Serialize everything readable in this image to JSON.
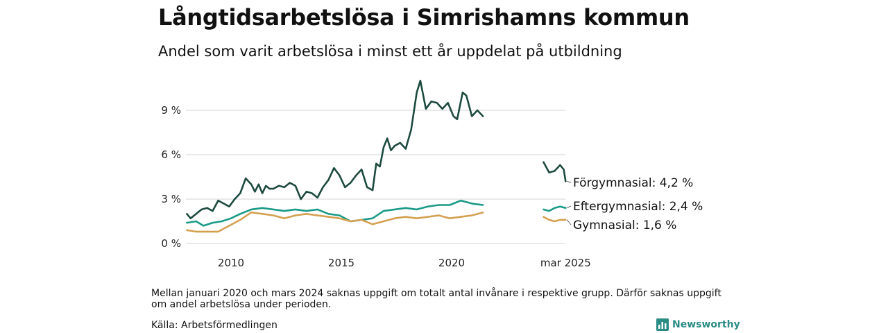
{
  "title": "Långtidsarbetslösa i Simrishamns kommun",
  "subtitle": "Andel som varit arbetslösa i minst ett år uppdelat på utbildning",
  "note": "Mellan januari 2020 och mars 2024 saknas uppgift om totalt antal invånare i respektive grupp. Därför saknas uppgift om andel arbetslösa under perioden.",
  "source": "Källa: Arbetsförmedlingen",
  "brand": "Newsworthy",
  "chart_data": {
    "type": "line",
    "title": "Långtidsarbetslösa i Simrishamns kommun",
    "subtitle": "Andel som varit arbetslösa i minst ett år uppdelat på utbildning",
    "x_tick_labels": [
      "2010",
      "2015",
      "2020",
      "mar 2025"
    ],
    "y_tick_labels": [
      "0 %",
      "3 %",
      "6 %",
      "9 %"
    ],
    "y_ticks": [
      0,
      3,
      6,
      9
    ],
    "ylim": [
      0,
      11
    ],
    "y_unit": "%",
    "grid": true,
    "legend": "end labels",
    "series": [
      {
        "name": "Förgymnasial",
        "end_label": "Förgymnasial: 4,2 %",
        "color": "#1d4a3f",
        "segments": [
          [
            [
              "2008-01",
              2.0
            ],
            [
              "2008-03",
              1.7
            ],
            [
              "2008-06",
              2.0
            ],
            [
              "2008-09",
              2.3
            ],
            [
              "2008-12",
              2.4
            ],
            [
              "2009-03",
              2.2
            ],
            [
              "2009-06",
              2.9
            ],
            [
              "2009-09",
              2.7
            ],
            [
              "2009-12",
              2.5
            ],
            [
              "2010-03",
              3.0
            ],
            [
              "2010-06",
              3.4
            ],
            [
              "2010-09",
              4.4
            ],
            [
              "2010-12",
              4.0
            ],
            [
              "2011-02",
              3.5
            ],
            [
              "2011-04",
              4.0
            ],
            [
              "2011-06",
              3.4
            ],
            [
              "2011-08",
              3.9
            ],
            [
              "2011-10",
              3.7
            ],
            [
              "2011-12",
              3.7
            ],
            [
              "2012-03",
              3.9
            ],
            [
              "2012-06",
              3.8
            ],
            [
              "2012-09",
              4.1
            ],
            [
              "2012-12",
              3.9
            ],
            [
              "2013-03",
              3.0
            ],
            [
              "2013-06",
              3.5
            ],
            [
              "2013-09",
              3.4
            ],
            [
              "2013-12",
              3.1
            ],
            [
              "2014-03",
              3.8
            ],
            [
              "2014-06",
              4.3
            ],
            [
              "2014-09",
              5.1
            ],
            [
              "2014-12",
              4.6
            ],
            [
              "2015-03",
              3.8
            ],
            [
              "2015-06",
              4.1
            ],
            [
              "2015-09",
              4.6
            ],
            [
              "2015-12",
              5.0
            ],
            [
              "2016-03",
              3.8
            ],
            [
              "2016-06",
              3.6
            ],
            [
              "2016-08",
              5.4
            ],
            [
              "2016-10",
              5.2
            ],
            [
              "2016-12",
              6.5
            ],
            [
              "2017-02",
              7.1
            ],
            [
              "2017-04",
              6.3
            ],
            [
              "2017-06",
              6.6
            ],
            [
              "2017-09",
              6.8
            ],
            [
              "2017-12",
              6.4
            ],
            [
              "2018-03",
              7.7
            ],
            [
              "2018-06",
              10.2
            ],
            [
              "2018-08",
              11.0
            ],
            [
              "2018-11",
              9.1
            ],
            [
              "2019-02",
              9.6
            ],
            [
              "2019-05",
              9.5
            ],
            [
              "2019-08",
              9.1
            ],
            [
              "2019-11",
              9.5
            ],
            [
              "2020-02",
              8.6
            ],
            [
              "2020-04",
              8.4
            ],
            [
              "2020-07",
              10.2
            ],
            [
              "2020-09",
              10.0
            ],
            [
              "2020-12",
              8.6
            ],
            [
              "2021-03",
              9.0
            ],
            [
              "2021-06",
              8.6
            ]
          ],
          [
            [
              "2024-03",
              5.5
            ],
            [
              "2024-06",
              4.8
            ],
            [
              "2024-09",
              4.9
            ],
            [
              "2024-12",
              5.3
            ],
            [
              "2025-02",
              5.0
            ],
            [
              "2025-03",
              4.2
            ]
          ]
        ]
      },
      {
        "name": "Eftergymnasial",
        "end_label": "Eftergymnasial: 2,4 %",
        "color": "#1a9a88",
        "segments": [
          [
            [
              "2008-01",
              1.4
            ],
            [
              "2008-06",
              1.5
            ],
            [
              "2008-10",
              1.2
            ],
            [
              "2009-03",
              1.4
            ],
            [
              "2009-08",
              1.5
            ],
            [
              "2010-01",
              1.7
            ],
            [
              "2010-06",
              2.0
            ],
            [
              "2010-12",
              2.3
            ],
            [
              "2011-06",
              2.4
            ],
            [
              "2011-12",
              2.3
            ],
            [
              "2012-06",
              2.2
            ],
            [
              "2012-12",
              2.3
            ],
            [
              "2013-06",
              2.2
            ],
            [
              "2013-12",
              2.3
            ],
            [
              "2014-06",
              2.0
            ],
            [
              "2014-12",
              1.9
            ],
            [
              "2015-06",
              1.5
            ],
            [
              "2015-12",
              1.6
            ],
            [
              "2016-06",
              1.7
            ],
            [
              "2016-12",
              2.2
            ],
            [
              "2017-06",
              2.3
            ],
            [
              "2017-12",
              2.4
            ],
            [
              "2018-06",
              2.3
            ],
            [
              "2018-12",
              2.5
            ],
            [
              "2019-06",
              2.6
            ],
            [
              "2019-12",
              2.6
            ],
            [
              "2020-06",
              2.9
            ],
            [
              "2020-12",
              2.7
            ],
            [
              "2021-06",
              2.6
            ]
          ],
          [
            [
              "2024-03",
              2.3
            ],
            [
              "2024-06",
              2.2
            ],
            [
              "2024-09",
              2.4
            ],
            [
              "2024-12",
              2.5
            ],
            [
              "2025-03",
              2.4
            ]
          ]
        ]
      },
      {
        "name": "Gymnasial",
        "end_label": "Gymnasial: 1,6 %",
        "color": "#d4a050",
        "segments": [
          [
            [
              "2008-01",
              0.9
            ],
            [
              "2008-06",
              0.8
            ],
            [
              "2008-12",
              0.8
            ],
            [
              "2009-06",
              0.8
            ],
            [
              "2009-12",
              1.2
            ],
            [
              "2010-06",
              1.6
            ],
            [
              "2010-12",
              2.1
            ],
            [
              "2011-06",
              2.0
            ],
            [
              "2011-12",
              1.9
            ],
            [
              "2012-06",
              1.7
            ],
            [
              "2012-12",
              1.9
            ],
            [
              "2013-06",
              2.0
            ],
            [
              "2013-12",
              1.9
            ],
            [
              "2014-06",
              1.8
            ],
            [
              "2014-12",
              1.7
            ],
            [
              "2015-06",
              1.5
            ],
            [
              "2015-12",
              1.6
            ],
            [
              "2016-06",
              1.3
            ],
            [
              "2016-12",
              1.5
            ],
            [
              "2017-06",
              1.7
            ],
            [
              "2017-12",
              1.8
            ],
            [
              "2018-06",
              1.7
            ],
            [
              "2018-12",
              1.8
            ],
            [
              "2019-06",
              1.9
            ],
            [
              "2019-12",
              1.7
            ],
            [
              "2020-06",
              1.8
            ],
            [
              "2020-12",
              1.9
            ],
            [
              "2021-06",
              2.1
            ]
          ],
          [
            [
              "2024-03",
              1.8
            ],
            [
              "2024-06",
              1.6
            ],
            [
              "2024-09",
              1.5
            ],
            [
              "2024-12",
              1.6
            ],
            [
              "2025-03",
              1.6
            ]
          ]
        ]
      }
    ]
  }
}
